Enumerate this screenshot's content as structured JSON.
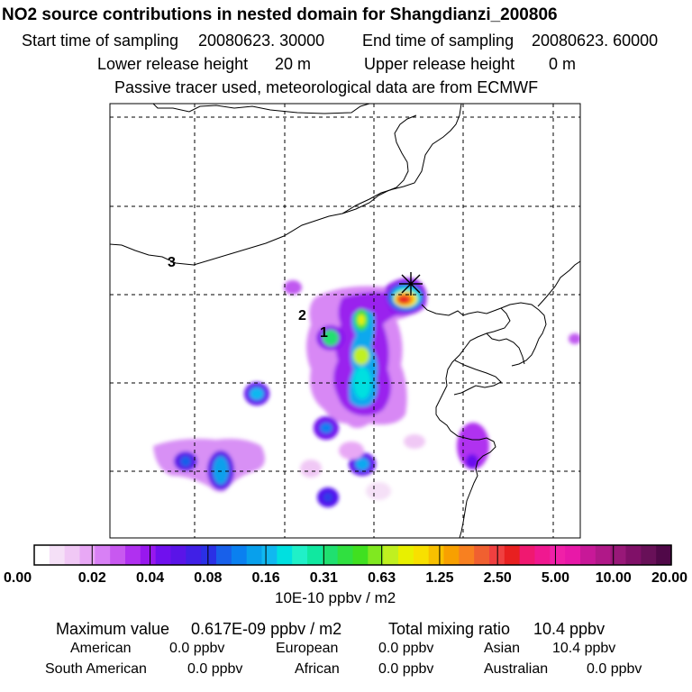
{
  "header": {
    "title": "NO2 source contributions in nested domain for Shangdianzi_200806",
    "start_label": "Start time of sampling",
    "start_value": "20080623. 30000",
    "end_label": "End time of sampling",
    "end_value": "20080623. 60000",
    "lower_label": "Lower release height",
    "lower_value": "20 m",
    "upper_label": "Upper release height",
    "upper_value": "0 m",
    "note": "Passive tracer used, meteorological data are from ECMWF"
  },
  "map": {
    "markers": [
      "1",
      "2",
      "3"
    ],
    "receptor_symbol": "×"
  },
  "colorbar": {
    "tick_labels": [
      "0.00",
      "0.02",
      "0.04",
      "0.08",
      "0.16",
      "0.31",
      "0.63",
      "1.25",
      "2.50",
      "5.00",
      "10.00",
      "20.00"
    ],
    "unit": "10E-10 ppbv / m2",
    "colors": [
      "#ffffff",
      "#f5e0f7",
      "#f0c8f5",
      "#e8a8f5",
      "#d880f5",
      "#c858f0",
      "#b030f0",
      "#9818ee",
      "#7010ee",
      "#5a14e8",
      "#4020e6",
      "#2a30e6",
      "#1860ea",
      "#0a80f0",
      "#08a0ec",
      "#10b8f0",
      "#00e0e0",
      "#20f0c8",
      "#10e8a0",
      "#20e070",
      "#30e040",
      "#40e020",
      "#80e820",
      "#c0f020",
      "#e8f000",
      "#f8e000",
      "#f8c000",
      "#f8a000",
      "#f88020",
      "#f06030",
      "#f04040",
      "#e82020",
      "#f01870",
      "#f01890",
      "#f020a8",
      "#e818a8",
      "#c81898",
      "#b01888",
      "#981878",
      "#801068",
      "#681058",
      "#500848"
    ]
  },
  "footer": {
    "max_label": "Maximum value",
    "max_value": "0.617E-09 ppbv / m2",
    "total_label": "Total mixing ratio",
    "total_value": "10.4 ppbv",
    "regions": [
      {
        "name": "American",
        "value": "0.0 ppbv"
      },
      {
        "name": "European",
        "value": "0.0 ppbv"
      },
      {
        "name": "Asian",
        "value": "10.4 ppbv"
      },
      {
        "name": "South American",
        "value": "0.0 ppbv"
      },
      {
        "name": "African",
        "value": "0.0 ppbv"
      },
      {
        "name": "Australian",
        "value": "0.0 ppbv"
      }
    ]
  }
}
